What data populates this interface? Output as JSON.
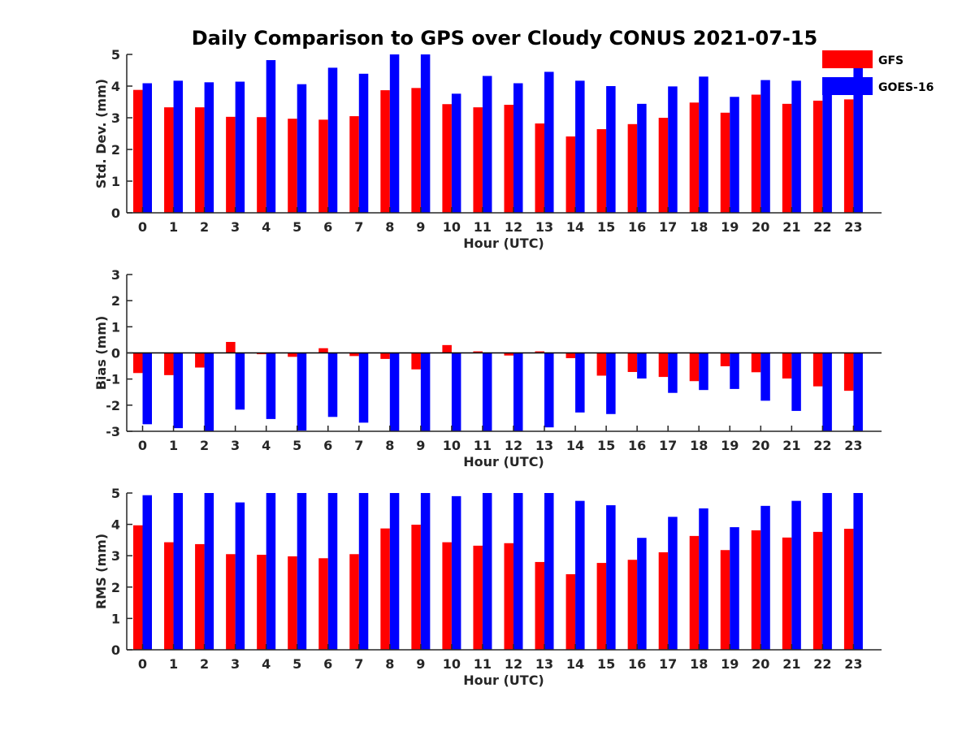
{
  "figure": {
    "title": "Daily Comparison to GPS over Cloudy CONUS 2021-07-15"
  },
  "colors": {
    "GFS": "#ff0000",
    "GOES-16": "#0000ff"
  },
  "legend": {
    "placement": "top-right",
    "entries": [
      "GFS",
      "GOES-16"
    ]
  },
  "chart_data": [
    {
      "type": "bar",
      "name": "stddev",
      "title": "Daily Comparison to GPS over Cloudy CONUS 2021-07-15",
      "xlabel": "Hour (UTC)",
      "ylabel": "Std. Dev. (mm)",
      "ylim": [
        0,
        5
      ],
      "yticks": [
        0,
        1,
        2,
        3,
        4,
        5
      ],
      "categories": [
        "0",
        "1",
        "2",
        "3",
        "4",
        "5",
        "6",
        "7",
        "8",
        "9",
        "10",
        "11",
        "12",
        "13",
        "14",
        "15",
        "16",
        "17",
        "18",
        "19",
        "20",
        "21",
        "22",
        "23"
      ],
      "series": [
        {
          "name": "GFS",
          "values": [
            3.88,
            3.33,
            3.33,
            3.03,
            3.02,
            2.97,
            2.94,
            3.05,
            3.87,
            3.94,
            3.43,
            3.33,
            3.41,
            2.82,
            2.41,
            2.64,
            2.8,
            3.0,
            3.48,
            3.16,
            3.73,
            3.44,
            3.54,
            3.58
          ]
        },
        {
          "name": "GOES-16",
          "values": [
            4.09,
            4.17,
            4.12,
            4.14,
            4.82,
            4.06,
            4.58,
            4.39,
            5.0,
            5.0,
            3.76,
            4.32,
            4.09,
            4.45,
            4.17,
            4.0,
            3.44,
            3.99,
            4.3,
            3.66,
            4.19,
            4.17,
            4.12,
            4.6
          ]
        }
      ]
    },
    {
      "type": "bar",
      "name": "bias",
      "xlabel": "Hour (UTC)",
      "ylabel": "Bias (mm)",
      "ylim": [
        -3,
        3
      ],
      "yticks": [
        -3,
        -2,
        -1,
        0,
        1,
        2,
        3
      ],
      "categories": [
        "0",
        "1",
        "2",
        "3",
        "4",
        "5",
        "6",
        "7",
        "8",
        "9",
        "10",
        "11",
        "12",
        "13",
        "14",
        "15",
        "16",
        "17",
        "18",
        "19",
        "20",
        "21",
        "22",
        "23"
      ],
      "series": [
        {
          "name": "GFS",
          "values": [
            -0.77,
            -0.85,
            -0.56,
            0.42,
            -0.05,
            -0.15,
            0.18,
            -0.12,
            -0.23,
            -0.63,
            0.3,
            0.06,
            -0.1,
            0.06,
            -0.2,
            -0.87,
            -0.73,
            -0.92,
            -1.08,
            -0.51,
            -0.74,
            -0.98,
            -1.28,
            -1.45
          ]
        },
        {
          "name": "GOES-16",
          "values": [
            -2.73,
            -2.88,
            -3.0,
            -2.17,
            -2.53,
            -2.97,
            -2.45,
            -2.67,
            -3.0,
            -3.0,
            -3.0,
            -3.0,
            -3.0,
            -2.85,
            -2.28,
            -2.34,
            -0.98,
            -1.53,
            -1.42,
            -1.38,
            -1.83,
            -2.22,
            -3.0,
            -3.0
          ]
        }
      ]
    },
    {
      "type": "bar",
      "name": "rms",
      "xlabel": "Hour (UTC)",
      "ylabel": "RMS (mm)",
      "ylim": [
        0,
        5
      ],
      "yticks": [
        0,
        1,
        2,
        3,
        4,
        5
      ],
      "categories": [
        "0",
        "1",
        "2",
        "3",
        "4",
        "5",
        "6",
        "7",
        "8",
        "9",
        "10",
        "11",
        "12",
        "13",
        "14",
        "15",
        "16",
        "17",
        "18",
        "19",
        "20",
        "21",
        "22",
        "23"
      ],
      "series": [
        {
          "name": "GFS",
          "values": [
            3.97,
            3.43,
            3.37,
            3.05,
            3.03,
            2.98,
            2.92,
            3.05,
            3.87,
            3.99,
            3.43,
            3.32,
            3.4,
            2.8,
            2.41,
            2.77,
            2.87,
            3.11,
            3.63,
            3.18,
            3.81,
            3.58,
            3.76,
            3.86
          ]
        },
        {
          "name": "GOES-16",
          "values": [
            4.93,
            5.0,
            5.0,
            4.7,
            5.0,
            5.0,
            5.0,
            5.0,
            5.0,
            5.0,
            4.9,
            5.0,
            5.0,
            5.0,
            4.75,
            4.61,
            3.57,
            4.24,
            4.51,
            3.91,
            4.59,
            4.75,
            5.0,
            5.0
          ]
        }
      ]
    }
  ]
}
